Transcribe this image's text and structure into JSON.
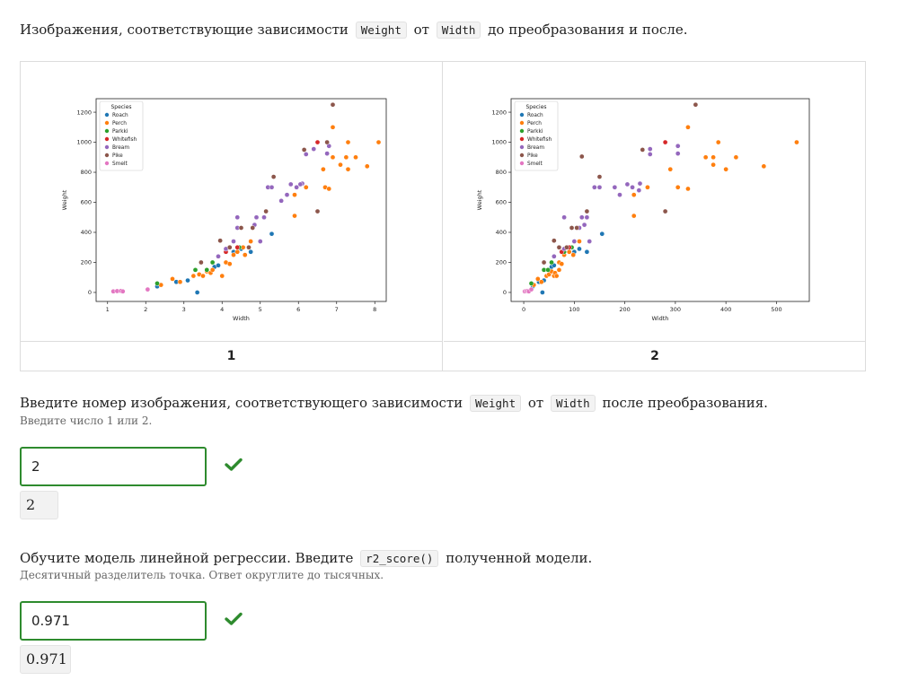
{
  "question1": {
    "text_before": "Изображения, соответствующие зависимости",
    "code_a": "Weight",
    "mid": "от",
    "code_b": "Width",
    "text_after": "до преобразования и после."
  },
  "image_labels": [
    "1",
    "2"
  ],
  "question2": {
    "text_before": "Введите номер изображения, соответствующего зависимости",
    "code_a": "Weight",
    "mid": "от",
    "code_b": "Width",
    "text_after": "после преобразования.",
    "hint": "Введите число 1 или 2.",
    "answer_value": "2",
    "echo_value": "2"
  },
  "question3": {
    "text_before": "Обучите модель линейной регрессии. Введите",
    "code": "r2_score()",
    "text_after": "полученной модели.",
    "hint": "Десятичный разделитель точка. Ответ округлите до тысячных.",
    "answer_value": "0.971",
    "echo_value": "0.971"
  },
  "chart_data": [
    {
      "type": "scatter",
      "xlabel": "Width",
      "ylabel": "Weight",
      "xlim": [
        0.7,
        8.3
      ],
      "ylim": [
        -60,
        1290
      ],
      "xticks": [
        1,
        2,
        3,
        4,
        5,
        6,
        7,
        8
      ],
      "yticks": [
        0,
        200,
        400,
        600,
        800,
        1000,
        1200
      ],
      "legend_title": "Species",
      "legend_position": "top-left",
      "series": [
        {
          "name": "Roach",
          "color": "#1f77b4",
          "points": [
            [
              2.3,
              40
            ],
            [
              2.8,
              70
            ],
            [
              3.1,
              80
            ],
            [
              3.35,
              0
            ],
            [
              3.8,
              170
            ],
            [
              3.9,
              180
            ],
            [
              4.1,
              270
            ],
            [
              4.3,
              270
            ],
            [
              4.5,
              290
            ],
            [
              4.75,
              270
            ],
            [
              5.3,
              390
            ]
          ]
        },
        {
          "name": "Perch",
          "color": "#ff7f0e",
          "points": [
            [
              2.4,
              50
            ],
            [
              2.7,
              90
            ],
            [
              2.9,
              70
            ],
            [
              3.25,
              110
            ],
            [
              3.4,
              120
            ],
            [
              3.5,
              110
            ],
            [
              3.6,
              140
            ],
            [
              3.7,
              130
            ],
            [
              3.75,
              150
            ],
            [
              4.0,
              110
            ],
            [
              4.1,
              200
            ],
            [
              4.2,
              190
            ],
            [
              4.3,
              250
            ],
            [
              4.4,
              270
            ],
            [
              4.55,
              300
            ],
            [
              4.6,
              250
            ],
            [
              4.75,
              340
            ],
            [
              5.9,
              510
            ],
            [
              5.9,
              650
            ],
            [
              6.2,
              700
            ],
            [
              6.7,
              700
            ],
            [
              6.8,
              690
            ],
            [
              6.65,
              820
            ],
            [
              6.9,
              900
            ],
            [
              7.1,
              850
            ],
            [
              7.3,
              820
            ],
            [
              7.25,
              900
            ],
            [
              7.5,
              900
            ],
            [
              7.8,
              840
            ],
            [
              7.3,
              1000
            ],
            [
              6.9,
              1100
            ],
            [
              8.1,
              1000
            ]
          ]
        },
        {
          "name": "Parkki",
          "color": "#2ca02c",
          "points": [
            [
              2.3,
              60
            ],
            [
              3.3,
              150
            ],
            [
              3.6,
              150
            ],
            [
              3.75,
              200
            ],
            [
              4.1,
              270
            ],
            [
              4.2,
              300
            ],
            [
              4.45,
              300
            ]
          ]
        },
        {
          "name": "Whitefish",
          "color": "#d62728",
          "points": [
            [
              4.1,
              270
            ],
            [
              4.4,
              300
            ],
            [
              6.5,
              540
            ],
            [
              6.5,
              1000
            ]
          ]
        },
        {
          "name": "Bream",
          "color": "#9467bd",
          "points": [
            [
              3.9,
              240
            ],
            [
              4.1,
              290
            ],
            [
              4.3,
              340
            ],
            [
              4.4,
              430
            ],
            [
              4.4,
              500
            ],
            [
              4.85,
              450
            ],
            [
              4.9,
              500
            ],
            [
              5.0,
              340
            ],
            [
              5.1,
              500
            ],
            [
              5.2,
              700
            ],
            [
              5.3,
              700
            ],
            [
              5.55,
              610
            ],
            [
              5.7,
              650
            ],
            [
              5.8,
              720
            ],
            [
              5.95,
              700
            ],
            [
              6.1,
              725
            ],
            [
              6.05,
              720
            ],
            [
              6.2,
              920
            ],
            [
              6.75,
              925
            ],
            [
              6.8,
              975
            ],
            [
              6.4,
              955
            ]
          ]
        },
        {
          "name": "Pike",
          "color": "#8c564b",
          "points": [
            [
              3.45,
              200
            ],
            [
              3.95,
              345
            ],
            [
              4.2,
              300
            ],
            [
              4.5,
              430
            ],
            [
              4.7,
              300
            ],
            [
              4.8,
              430
            ],
            [
              5.15,
              540
            ],
            [
              5.35,
              770
            ],
            [
              6.5,
              540
            ],
            [
              6.15,
              950
            ],
            [
              6.9,
              1250
            ],
            [
              6.75,
              1000
            ]
          ]
        },
        {
          "name": "Smelt",
          "color": "#e377c2",
          "points": [
            [
              1.15,
              7
            ],
            [
              1.25,
              9
            ],
            [
              1.35,
              10
            ],
            [
              1.4,
              7
            ],
            [
              2.05,
              20
            ]
          ]
        }
      ]
    },
    {
      "type": "scatter",
      "xlabel": "Width",
      "ylabel": "Weight",
      "xlim": [
        -25,
        565
      ],
      "ylim": [
        -60,
        1290
      ],
      "xticks": [
        0,
        100,
        200,
        300,
        400,
        500
      ],
      "yticks": [
        0,
        200,
        400,
        600,
        800,
        1000,
        1200
      ],
      "legend_title": "Species",
      "legend_position": "top-left",
      "series": [
        {
          "name": "Roach",
          "color": "#1f77b4",
          "points": [
            [
              18,
              40
            ],
            [
              30,
              70
            ],
            [
              40,
              80
            ],
            [
              37,
              0
            ],
            [
              55,
              170
            ],
            [
              60,
              180
            ],
            [
              80,
              270
            ],
            [
              100,
              270
            ],
            [
              110,
              290
            ],
            [
              125,
              270
            ],
            [
              155,
              390
            ]
          ]
        },
        {
          "name": "Perch",
          "color": "#ff7f0e",
          "points": [
            [
              20,
              50
            ],
            [
              28,
              90
            ],
            [
              35,
              70
            ],
            [
              45,
              110
            ],
            [
              50,
              120
            ],
            [
              60,
              110
            ],
            [
              55,
              140
            ],
            [
              62,
              130
            ],
            [
              70,
              150
            ],
            [
              65,
              110
            ],
            [
              70,
              200
            ],
            [
              75,
              190
            ],
            [
              80,
              250
            ],
            [
              90,
              270
            ],
            [
              95,
              300
            ],
            [
              98,
              250
            ],
            [
              110,
              340
            ],
            [
              218,
              510
            ],
            [
              218,
              650
            ],
            [
              245,
              700
            ],
            [
              305,
              700
            ],
            [
              325,
              690
            ],
            [
              290,
              820
            ],
            [
              360,
              900
            ],
            [
              375,
              850
            ],
            [
              400,
              820
            ],
            [
              375,
              900
            ],
            [
              420,
              900
            ],
            [
              475,
              840
            ],
            [
              385,
              1000
            ],
            [
              325,
              1100
            ],
            [
              540,
              1000
            ]
          ]
        },
        {
          "name": "Parkki",
          "color": "#2ca02c",
          "points": [
            [
              15,
              60
            ],
            [
              40,
              150
            ],
            [
              48,
              150
            ],
            [
              55,
              200
            ],
            [
              80,
              270
            ],
            [
              85,
              300
            ],
            [
              95,
              300
            ]
          ]
        },
        {
          "name": "Whitefish",
          "color": "#d62728",
          "points": [
            [
              75,
              270
            ],
            [
              90,
              300
            ],
            [
              280,
              540
            ],
            [
              280,
              1000
            ]
          ]
        },
        {
          "name": "Bream",
          "color": "#9467bd",
          "points": [
            [
              60,
              240
            ],
            [
              80,
              290
            ],
            [
              100,
              340
            ],
            [
              110,
              430
            ],
            [
              80,
              500
            ],
            [
              120,
              450
            ],
            [
              115,
              500
            ],
            [
              130,
              340
            ],
            [
              125,
              500
            ],
            [
              140,
              700
            ],
            [
              150,
              700
            ],
            [
              180,
              700
            ],
            [
              190,
              650
            ],
            [
              205,
              720
            ],
            [
              215,
              700
            ],
            [
              230,
              725
            ],
            [
              228,
              680
            ],
            [
              250,
              955
            ],
            [
              305,
              975
            ],
            [
              305,
              925
            ],
            [
              250,
              920
            ]
          ]
        },
        {
          "name": "Pike",
          "color": "#8c564b",
          "points": [
            [
              40,
              200
            ],
            [
              60,
              345
            ],
            [
              70,
              300
            ],
            [
              95,
              430
            ],
            [
              85,
              300
            ],
            [
              105,
              430
            ],
            [
              125,
              540
            ],
            [
              150,
              770
            ],
            [
              280,
              540
            ],
            [
              235,
              950
            ],
            [
              340,
              1250
            ],
            [
              115,
              905
            ]
          ]
        },
        {
          "name": "Smelt",
          "color": "#e377c2",
          "points": [
            [
              2,
              7
            ],
            [
              5,
              9
            ],
            [
              8,
              10
            ],
            [
              10,
              7
            ],
            [
              15,
              20
            ]
          ]
        }
      ]
    }
  ]
}
